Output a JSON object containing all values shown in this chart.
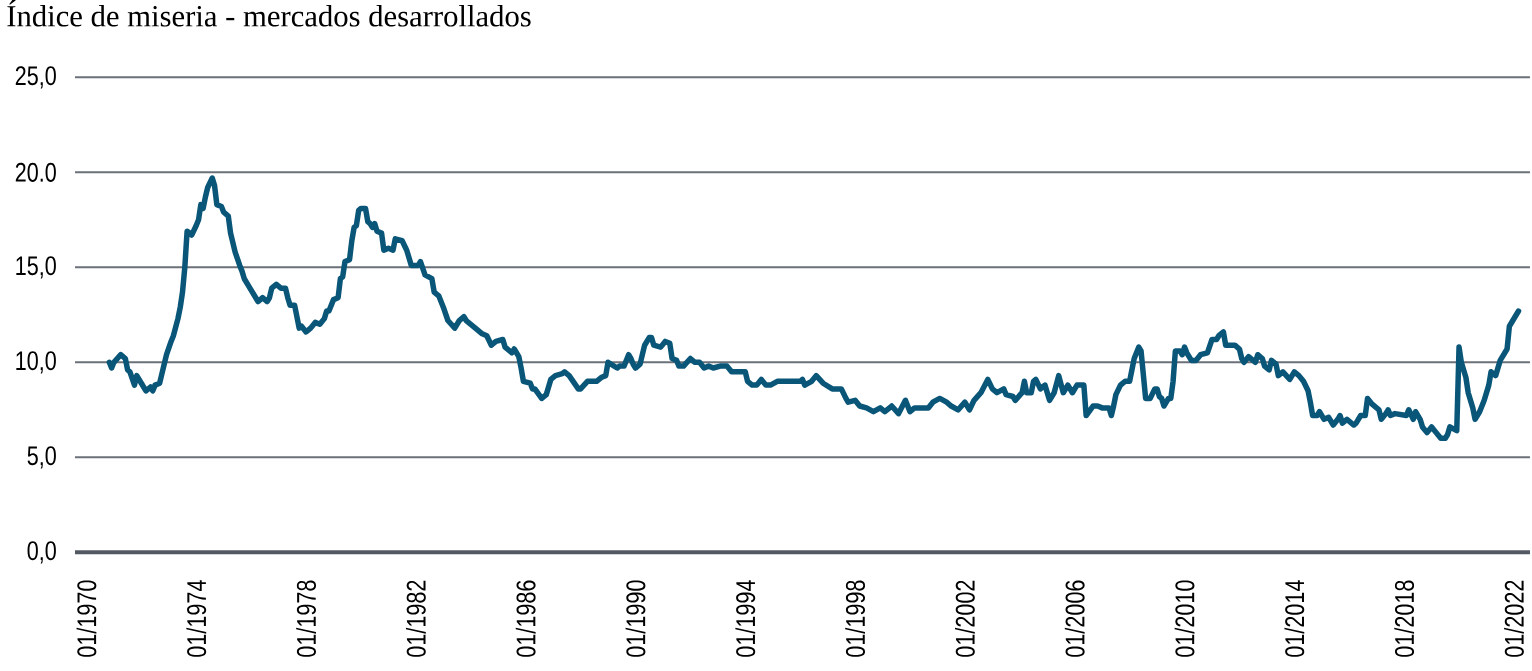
{
  "chart_data": {
    "type": "line",
    "title": "Índice de miseria - mercados desarrollados",
    "color": "#0a5679",
    "marker": "none",
    "grid": "y",
    "xlim": [
      "1969-08",
      "2022-08"
    ],
    "ylim": [
      0,
      25
    ],
    "xticks": [
      {
        "value": "1970-01",
        "label": "01/1970"
      },
      {
        "value": "1974-01",
        "label": "01/1974"
      },
      {
        "value": "1978-01",
        "label": "01/1978"
      },
      {
        "value": "1982-01",
        "label": "01/1982"
      },
      {
        "value": "1986-01",
        "label": "01/1986"
      },
      {
        "value": "1990-01",
        "label": "01/1990"
      },
      {
        "value": "1994-01",
        "label": "01/1994"
      },
      {
        "value": "1998-01",
        "label": "01/1998"
      },
      {
        "value": "2002-01",
        "label": "01/2002"
      },
      {
        "value": "2006-01",
        "label": "01/2006"
      },
      {
        "value": "2010-01",
        "label": "01/2010"
      },
      {
        "value": "2014-01",
        "label": "01/2014"
      },
      {
        "value": "2018-01",
        "label": "01/2018"
      },
      {
        "value": "2022-01",
        "label": "01/2022"
      }
    ],
    "yticks": [
      {
        "value": 0,
        "label": "0,0"
      },
      {
        "value": 5,
        "label": "5,0"
      },
      {
        "value": 10,
        "label": "10,0"
      },
      {
        "value": 15,
        "label": "15,0"
      },
      {
        "value": 20,
        "label": "20.0"
      },
      {
        "value": 25,
        "label": "25,0"
      }
    ],
    "x": [
      "1970-11",
      "1970-12",
      "1971-01",
      "1971-04",
      "1971-06",
      "1971-07",
      "1971-08",
      "1971-10",
      "1971-11",
      "1972-01",
      "1972-03",
      "1972-05",
      "1972-06",
      "1972-07",
      "1972-09",
      "1972-12",
      "1973-02",
      "1973-03",
      "1973-05",
      "1973-06",
      "1973-07",
      "1973-08",
      "1973-09",
      "1973-11",
      "1974-01",
      "1974-02",
      "1974-03",
      "1974-04",
      "1974-05",
      "1974-06",
      "1974-08",
      "1974-09",
      "1974-10",
      "1974-12",
      "1975-01",
      "1975-03",
      "1975-04",
      "1975-05",
      "1975-06",
      "1975-08",
      "1975-09",
      "1975-10",
      "1975-12",
      "1976-02",
      "1976-04",
      "1976-06",
      "1976-08",
      "1976-09",
      "1976-10",
      "1976-12",
      "1977-02",
      "1977-04",
      "1977-05",
      "1977-06",
      "1977-08",
      "1977-10",
      "1977-11",
      "1978-01",
      "1978-03",
      "1978-05",
      "1978-07",
      "1978-09",
      "1978-10",
      "1978-11",
      "1979-01",
      "1979-03",
      "1979-04",
      "1979-05",
      "1979-06",
      "1979-08",
      "1979-09",
      "1979-10",
      "1979-11",
      "1979-12",
      "1980-01",
      "1980-03",
      "1980-04",
      "1980-05",
      "1980-06",
      "1980-07",
      "1980-08",
      "1980-10",
      "1980-11",
      "1981-01",
      "1981-03",
      "1981-04",
      "1981-07",
      "1981-09",
      "1981-11",
      "1982-02",
      "1982-03",
      "1982-05",
      "1982-08",
      "1982-09",
      "1982-11",
      "1983-01",
      "1983-03",
      "1983-06",
      "1983-08",
      "1983-10",
      "1983-11",
      "1984-03",
      "1984-06",
      "1984-08",
      "1984-10",
      "1984-12",
      "1985-03",
      "1985-04",
      "1985-07",
      "1985-08",
      "1985-10",
      "1985-11",
      "1985-12",
      "1986-03",
      "1986-04",
      "1986-05",
      "1986-08",
      "1986-10",
      "1986-12",
      "1987-02",
      "1987-05",
      "1987-06",
      "1987-08",
      "1987-12",
      "1988-01",
      "1988-04",
      "1988-08",
      "1988-10",
      "1988-12",
      "1989-01",
      "1989-05",
      "1989-06",
      "1989-08",
      "1989-10",
      "1989-11",
      "1989-12",
      "1990-01",
      "1990-03",
      "1990-05",
      "1990-07",
      "1990-08",
      "1990-09",
      "1990-12",
      "1991-02",
      "1991-04",
      "1991-05",
      "1991-07",
      "1991-08",
      "1991-10",
      "1992-01",
      "1992-03",
      "1992-05",
      "1992-07",
      "1992-09",
      "1992-11",
      "1993-02",
      "1993-05",
      "1993-07",
      "1994-01",
      "1994-02",
      "1994-04",
      "1994-06",
      "1994-08",
      "1994-10",
      "1994-12",
      "1995-03",
      "1995-08",
      "1996-01",
      "1996-02",
      "1996-03",
      "1996-06",
      "1996-08",
      "1996-11",
      "1997-03",
      "1997-07",
      "1997-09",
      "1997-10",
      "1998-01",
      "1998-03",
      "1998-06",
      "1998-09",
      "1998-12",
      "1999-02",
      "1999-05",
      "1999-08",
      "1999-11",
      "2000-01",
      "2000-03",
      "2000-06",
      "2000-09",
      "2000-11",
      "2001-02",
      "2001-05",
      "2001-07",
      "2001-10",
      "2002-01",
      "2002-03",
      "2002-05",
      "2002-08",
      "2002-11",
      "2003-01",
      "2003-03",
      "2003-06",
      "2003-07",
      "2003-10",
      "2003-11",
      "2004-02",
      "2004-03",
      "2004-04",
      "2004-06",
      "2004-07",
      "2004-08",
      "2004-10",
      "2004-12",
      "2005-02",
      "2005-04",
      "2005-06",
      "2005-08",
      "2005-10",
      "2005-12",
      "2006-02",
      "2006-05",
      "2006-06",
      "2006-09",
      "2006-11",
      "2007-01",
      "2007-04",
      "2007-05",
      "2007-06",
      "2007-07",
      "2007-09",
      "2007-11",
      "2008-01",
      "2008-02",
      "2008-03",
      "2008-05",
      "2008-06",
      "2008-08",
      "2008-10",
      "2008-12",
      "2009-01",
      "2009-02",
      "2009-03",
      "2009-04",
      "2009-06",
      "2009-07",
      "2009-08",
      "2009-09",
      "2009-11",
      "2009-12",
      "2010-01",
      "2010-02",
      "2010-04",
      "2010-06",
      "2010-08",
      "2010-11",
      "2011-01",
      "2011-03",
      "2011-04",
      "2011-06",
      "2011-07",
      "2011-11",
      "2012-01",
      "2012-02",
      "2012-03",
      "2012-05",
      "2012-08",
      "2012-09",
      "2012-11",
      "2012-12",
      "2013-02",
      "2013-03",
      "2013-05",
      "2013-06",
      "2013-08",
      "2013-11",
      "2014-01",
      "2014-03",
      "2014-05",
      "2014-07",
      "2014-08",
      "2014-09",
      "2014-11",
      "2014-12",
      "2015-02",
      "2015-04",
      "2015-06",
      "2015-08",
      "2015-09",
      "2015-10",
      "2015-12",
      "2016-03",
      "2016-04",
      "2016-06",
      "2016-08",
      "2016-09",
      "2016-11",
      "2017-02",
      "2017-03",
      "2017-05",
      "2017-06",
      "2017-07",
      "2017-09",
      "2018-02",
      "2018-03",
      "2018-05",
      "2018-06",
      "2018-08",
      "2018-09",
      "2018-11",
      "2019-01",
      "2019-03",
      "2019-05",
      "2019-07",
      "2019-08",
      "2019-09",
      "2019-12",
      "2020-01",
      "2020-02",
      "2020-04",
      "2020-05",
      "2020-07",
      "2020-08",
      "2020-10",
      "2020-12",
      "2021-02",
      "2021-03",
      "2021-05",
      "2021-07",
      "2021-10",
      "2021-11",
      "2022-03"
    ],
    "values": [
      10.0,
      9.7,
      10.0,
      10.4,
      10.2,
      9.6,
      9.5,
      8.8,
      9.3,
      8.9,
      8.5,
      8.7,
      8.5,
      8.8,
      8.9,
      10.4,
      11.1,
      11.4,
      12.3,
      12.9,
      13.7,
      15.0,
      16.9,
      16.7,
      17.2,
      17.5,
      18.3,
      18.1,
      18.7,
      19.2,
      19.7,
      19.3,
      18.3,
      18.2,
      17.9,
      17.7,
      16.8,
      16.3,
      15.8,
      15.1,
      14.8,
      14.4,
      14.0,
      13.6,
      13.2,
      13.4,
      13.2,
      13.4,
      13.9,
      14.1,
      13.9,
      13.9,
      13.4,
      13.0,
      13.0,
      11.8,
      11.9,
      11.6,
      11.8,
      12.1,
      12.0,
      12.3,
      12.7,
      12.7,
      13.3,
      13.4,
      14.4,
      14.5,
      15.3,
      15.4,
      16.4,
      17.1,
      17.2,
      18.0,
      18.1,
      18.1,
      17.4,
      17.3,
      17.1,
      17.3,
      16.9,
      16.8,
      15.9,
      16.0,
      15.9,
      16.5,
      16.4,
      15.9,
      15.1,
      15.1,
      15.3,
      14.6,
      14.4,
      13.7,
      13.5,
      12.9,
      12.2,
      11.8,
      12.2,
      12.4,
      12.2,
      11.8,
      11.5,
      11.4,
      10.9,
      11.1,
      11.2,
      10.8,
      10.5,
      10.7,
      10.3,
      9.7,
      9.0,
      8.9,
      8.6,
      8.6,
      8.1,
      8.3,
      9.1,
      9.3,
      9.4,
      9.5,
      9.3,
      8.6,
      8.6,
      9.0,
      9.0,
      9.2,
      9.3,
      10.0,
      9.7,
      9.8,
      9.8,
      10.4,
      10.2,
      9.9,
      9.7,
      9.9,
      10.9,
      11.3,
      11.3,
      10.9,
      10.8,
      11.1,
      11.0,
      10.2,
      10.1,
      9.8,
      9.8,
      10.2,
      10.0,
      10.0,
      9.7,
      9.8,
      9.7,
      9.8,
      9.8,
      9.5,
      9.5,
      9.0,
      8.8,
      8.8,
      9.1,
      8.8,
      8.8,
      9.0,
      9.0,
      9.0,
      9.1,
      8.8,
      9.0,
      9.3,
      8.9,
      8.6,
      8.6,
      8.1,
      7.9,
      8.0,
      7.7,
      7.6,
      7.4,
      7.6,
      7.4,
      7.7,
      7.3,
      8.0,
      7.4,
      7.6,
      7.6,
      7.6,
      7.9,
      8.1,
      7.9,
      7.7,
      7.5,
      7.9,
      7.5,
      8.0,
      8.4,
      9.1,
      8.6,
      8.4,
      8.6,
      8.3,
      8.2,
      8.0,
      8.4,
      9.0,
      8.4,
      8.4,
      9.0,
      9.1,
      8.6,
      8.8,
      8.0,
      8.4,
      9.3,
      8.4,
      8.8,
      8.4,
      8.8,
      8.8,
      7.2,
      7.7,
      7.7,
      7.6,
      7.6,
      7.2,
      7.7,
      8.3,
      8.8,
      9.0,
      9.0,
      9.6,
      10.2,
      10.8,
      10.6,
      8.1,
      8.1,
      8.6,
      8.6,
      8.2,
      8.1,
      7.7,
      8.1,
      8.1,
      9.0,
      10.6,
      10.6,
      10.4,
      10.8,
      10.5,
      10.1,
      10.1,
      10.4,
      10.5,
      11.2,
      11.2,
      11.4,
      11.6,
      10.9,
      10.9,
      10.7,
      10.2,
      10.0,
      10.3,
      10.0,
      10.4,
      10.2,
      9.8,
      9.6,
      10.1,
      9.9,
      9.3,
      9.5,
      9.1,
      9.5,
      9.3,
      9.0,
      8.5,
      7.9,
      7.2,
      7.2,
      7.4,
      7.0,
      7.1,
      6.7,
      7.0,
      7.2,
      6.8,
      7.0,
      6.7,
      6.8,
      7.2,
      7.2,
      8.1,
      7.8,
      7.5,
      7.0,
      7.3,
      7.5,
      7.2,
      7.3,
      7.2,
      7.5,
      7.0,
      7.4,
      7.0,
      6.6,
      6.3,
      6.6,
      6.3,
      6.0,
      6.0,
      6.2,
      6.6,
      6.4,
      10.8,
      10.0,
      9.2,
      8.4,
      7.6,
      7.0,
      7.4,
      8.0,
      8.8,
      9.5,
      9.3,
      10.1,
      10.7,
      11.9,
      12.7
    ]
  }
}
